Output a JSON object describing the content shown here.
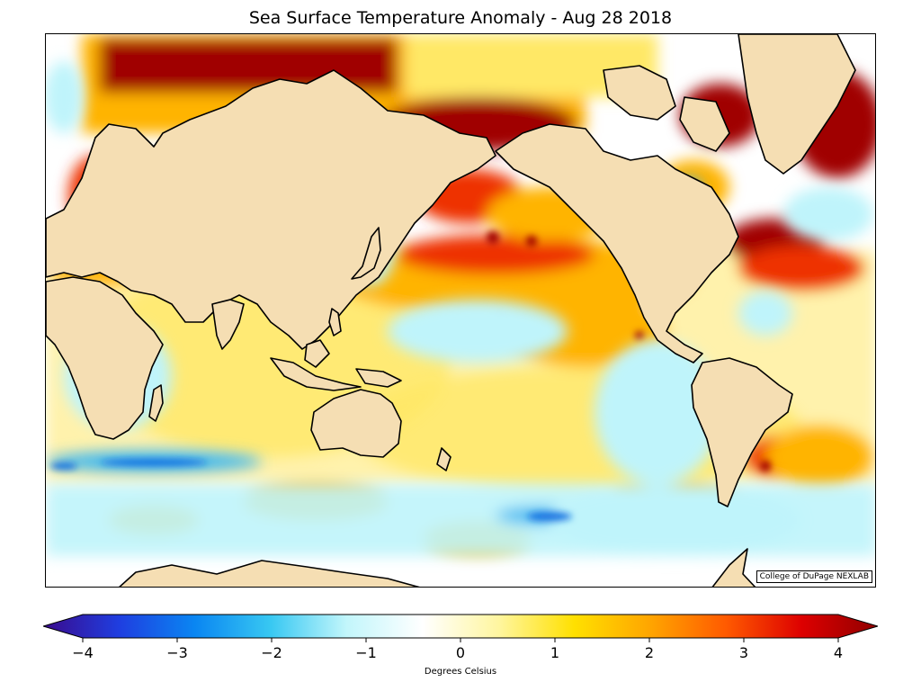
{
  "title": "Sea Surface Temperature Anomaly - Aug 28 2018",
  "credit": "College of DuPage NEXLAB",
  "colorbar": {
    "label": "Degrees Celsius",
    "min": -4,
    "max": 4,
    "ticks": [
      "−4",
      "−3",
      "−2",
      "−1",
      "0",
      "1",
      "2",
      "3",
      "4"
    ],
    "colors": [
      "#3a0a8c",
      "#1f3ee0",
      "#0a86f2",
      "#38c8f2",
      "#c2f6fb",
      "#ffffff",
      "#fff6a0",
      "#ffe000",
      "#ffa500",
      "#ff5a00",
      "#dd0000",
      "#900000"
    ]
  },
  "map": {
    "land_color": "#f5deb3",
    "anomaly_palette": {
      "strong_warm": "#a00000",
      "warm": "#ee3300",
      "mild_warm": "#ffb400",
      "slight_warm": "#ffe866",
      "slight_cool": "#bff4fb",
      "cool": "#3fb8f0",
      "strong_cool": "#1270e0"
    }
  }
}
